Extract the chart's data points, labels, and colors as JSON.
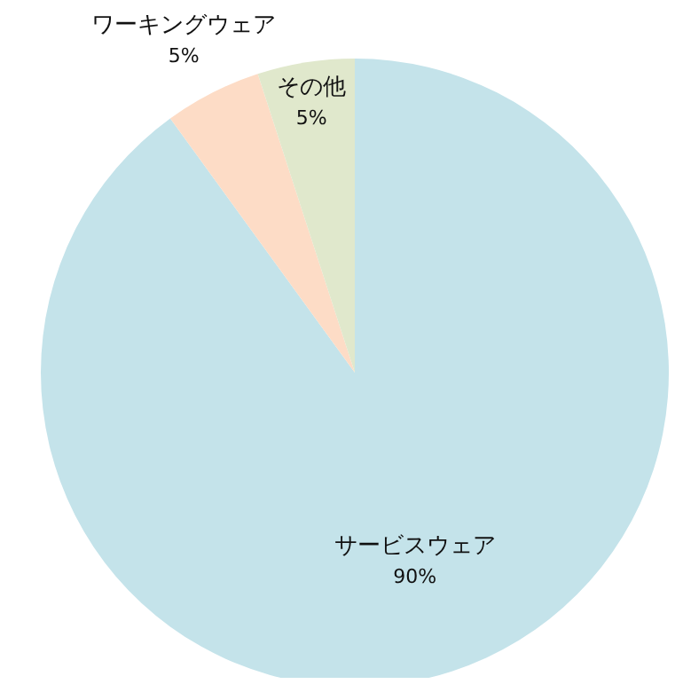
{
  "chart_data": {
    "type": "pie",
    "categories": [
      "サービスウェア",
      "ワーキングウェア",
      "その他"
    ],
    "values": [
      90,
      5,
      5
    ],
    "colors": [
      "#c4e3ea",
      "#fddcc6",
      "#e0e8cc"
    ],
    "value_labels": [
      "90%",
      "5%",
      "5%"
    ]
  }
}
